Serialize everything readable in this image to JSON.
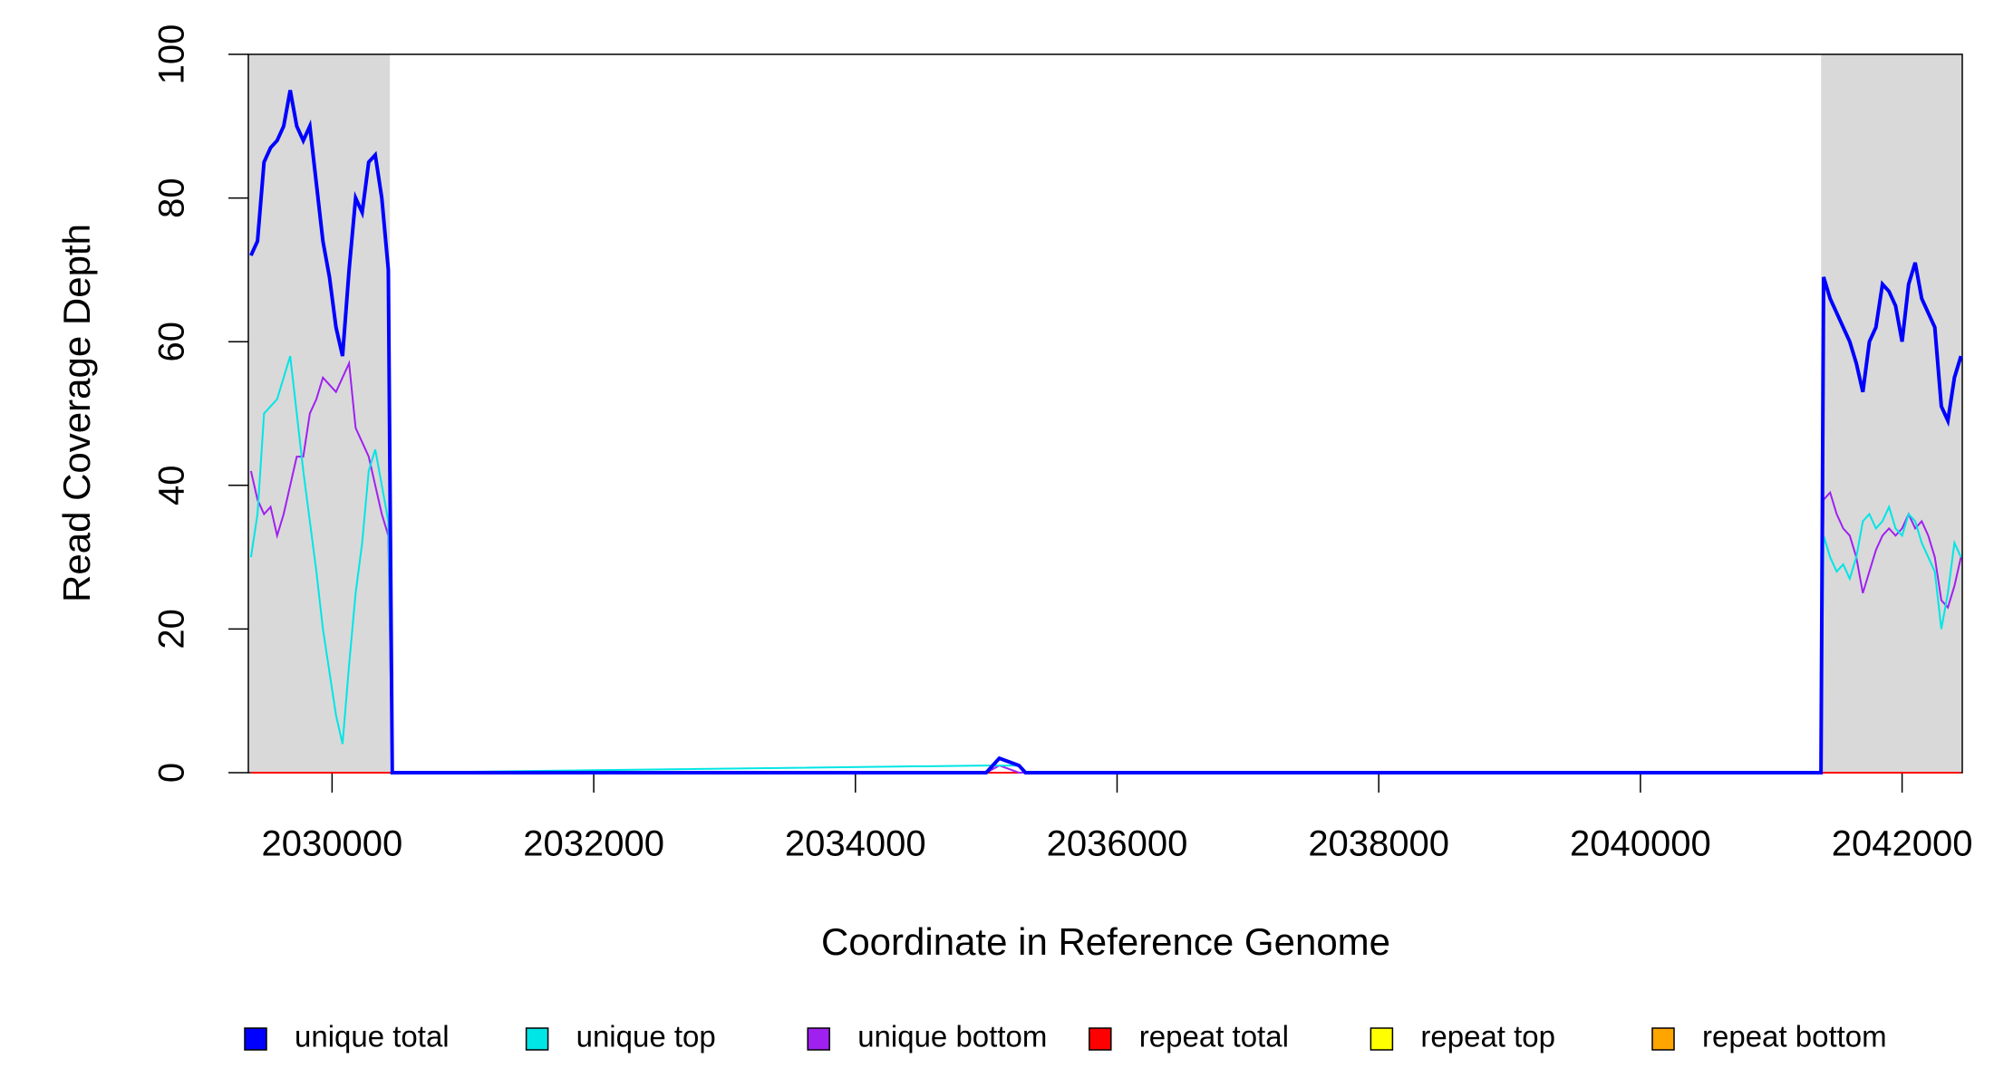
{
  "chart_data": {
    "type": "line",
    "step": true,
    "x_label": "Coordinate in Reference Genome",
    "y_label": "Read Coverage Depth",
    "xlim": [
      2029360,
      2042460
    ],
    "ylim": [
      0,
      100
    ],
    "xticks": [
      2030000,
      2032000,
      2034000,
      2036000,
      2038000,
      2040000,
      2042000
    ],
    "yticks": [
      0,
      20,
      40,
      60,
      80,
      100
    ],
    "highlight_regions": [
      [
        2029360,
        2030442
      ],
      [
        2041381,
        2042460
      ]
    ],
    "highlight_color": "#d9d9d9",
    "x": [
      2029380,
      2029430,
      2029480,
      2029530,
      2029580,
      2029630,
      2029680,
      2029730,
      2029780,
      2029830,
      2029880,
      2029930,
      2029980,
      2030030,
      2030080,
      2030130,
      2030180,
      2030230,
      2030280,
      2030330,
      2030380,
      2030430,
      2030460,
      2035000,
      2035100,
      2035250,
      2035300,
      2041380,
      2041400,
      2041450,
      2041500,
      2041550,
      2041600,
      2041650,
      2041700,
      2041750,
      2041800,
      2041850,
      2041900,
      2041950,
      2042000,
      2042050,
      2042100,
      2042150,
      2042200,
      2042250,
      2042300,
      2042350,
      2042400,
      2042450
    ],
    "series": [
      {
        "name": "unique total",
        "color": "#0000ff",
        "width": 4,
        "values": [
          72,
          74,
          85,
          87,
          88,
          90,
          95,
          90,
          88,
          90,
          82,
          74,
          69,
          62,
          58,
          70,
          80,
          78,
          85,
          86,
          80,
          70,
          0,
          0,
          2,
          1,
          0,
          0,
          69,
          66,
          64,
          62,
          60,
          57,
          53,
          60,
          62,
          68,
          67,
          65,
          60,
          68,
          71,
          66,
          64,
          62,
          51,
          49,
          55,
          58
        ]
      },
      {
        "name": "unique top",
        "color": "#00e5e5",
        "width": 2,
        "values": [
          30,
          36,
          50,
          51,
          52,
          55,
          58,
          50,
          42,
          35,
          28,
          20,
          14,
          8,
          4,
          15,
          25,
          32,
          42,
          45,
          40,
          35,
          0,
          1,
          1,
          1,
          0,
          0,
          33,
          30,
          28,
          29,
          27,
          30,
          35,
          36,
          34,
          35,
          37,
          34,
          33,
          36,
          35,
          32,
          30,
          28,
          20,
          25,
          32,
          30
        ]
      },
      {
        "name": "unique bottom",
        "color": "#a020f0",
        "width": 2,
        "values": [
          42,
          38,
          36,
          37,
          33,
          36,
          40,
          44,
          44,
          50,
          52,
          55,
          54,
          53,
          55,
          57,
          48,
          46,
          44,
          40,
          36,
          33,
          0,
          0,
          1,
          0,
          0,
          0,
          38,
          39,
          36,
          34,
          33,
          30,
          25,
          28,
          31,
          33,
          34,
          33,
          34,
          36,
          34,
          35,
          33,
          30,
          24,
          23,
          26,
          30
        ]
      },
      {
        "name": "repeat total",
        "color": "#ff0000",
        "width": 2,
        "values": [
          0,
          0,
          0,
          0,
          0,
          0,
          0,
          0,
          0,
          0,
          0,
          0,
          0,
          0,
          0,
          0,
          0,
          0,
          0,
          0,
          0,
          0,
          0,
          0,
          0,
          0,
          0,
          0,
          0,
          0,
          0,
          0,
          0,
          0,
          0,
          0,
          0,
          0,
          0,
          0,
          0,
          0,
          0,
          0,
          0,
          0,
          0,
          0,
          0,
          0
        ]
      },
      {
        "name": "repeat top",
        "color": "#ffff00",
        "width": 2,
        "values": [
          0,
          0,
          0,
          0,
          0,
          0,
          0,
          0,
          0,
          0,
          0,
          0,
          0,
          0,
          0,
          0,
          0,
          0,
          0,
          0,
          0,
          0,
          0,
          0,
          0,
          0,
          0,
          0,
          0,
          0,
          0,
          0,
          0,
          0,
          0,
          0,
          0,
          0,
          0,
          0,
          0,
          0,
          0,
          0,
          0,
          0,
          0,
          0,
          0,
          0
        ]
      },
      {
        "name": "repeat bottom",
        "color": "#ffa500",
        "width": 2,
        "values": [
          0,
          0,
          0,
          0,
          0,
          0,
          0,
          0,
          0,
          0,
          0,
          0,
          0,
          0,
          0,
          0,
          0,
          0,
          0,
          0,
          0,
          0,
          0,
          0,
          0,
          0,
          0,
          0,
          0,
          0,
          0,
          0,
          0,
          0,
          0,
          0,
          0,
          0,
          0,
          0,
          0,
          0,
          0,
          0,
          0,
          0,
          0,
          0,
          0,
          0
        ]
      }
    ]
  }
}
